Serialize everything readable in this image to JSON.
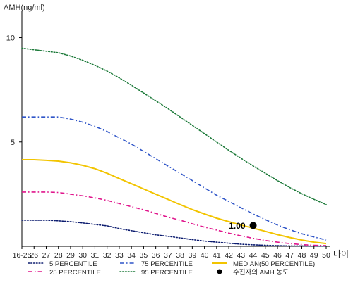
{
  "chart_data": {
    "type": "line",
    "ylabel": "AMH(ng/ml)",
    "xlabel": "나이",
    "x_ticks": [
      "16-25",
      "26",
      "27",
      "28",
      "29",
      "30",
      "31",
      "32",
      "33",
      "34",
      "35",
      "36",
      "37",
      "38",
      "39",
      "40",
      "41",
      "42",
      "43",
      "44",
      "45",
      "46",
      "47",
      "48",
      "49",
      "50"
    ],
    "y_ticks": [
      5,
      10
    ],
    "ylim": [
      0,
      11.3
    ],
    "grid": false,
    "legend_position": "bottom",
    "series": [
      {
        "name": "5 PERCENTILE",
        "color": "#0a1a6e",
        "style": "dotted",
        "points": [
          [
            0,
            1.25
          ],
          [
            1,
            1.25
          ],
          [
            2,
            1.25
          ],
          [
            3,
            1.22
          ],
          [
            4,
            1.18
          ],
          [
            5,
            1.12
          ],
          [
            6,
            1.05
          ],
          [
            7,
            0.98
          ],
          [
            8,
            0.85
          ],
          [
            9,
            0.75
          ],
          [
            10,
            0.65
          ],
          [
            11,
            0.55
          ],
          [
            12,
            0.48
          ],
          [
            13,
            0.4
          ],
          [
            14,
            0.32
          ],
          [
            15,
            0.25
          ],
          [
            16,
            0.2
          ],
          [
            17,
            0.15
          ],
          [
            18,
            0.1
          ],
          [
            19,
            0.07
          ],
          [
            20,
            0.05
          ],
          [
            21,
            0.03
          ],
          [
            22,
            0.02
          ],
          [
            23,
            0.02
          ],
          [
            24,
            0.01
          ],
          [
            25,
            0.01
          ]
        ]
      },
      {
        "name": "25 PERCENTILE",
        "color": "#e0168c",
        "style": "dash-dot",
        "points": [
          [
            0,
            2.6
          ],
          [
            1,
            2.6
          ],
          [
            2,
            2.6
          ],
          [
            3,
            2.58
          ],
          [
            4,
            2.5
          ],
          [
            5,
            2.42
          ],
          [
            6,
            2.32
          ],
          [
            7,
            2.2
          ],
          [
            8,
            2.05
          ],
          [
            9,
            1.9
          ],
          [
            10,
            1.75
          ],
          [
            11,
            1.58
          ],
          [
            12,
            1.4
          ],
          [
            13,
            1.25
          ],
          [
            14,
            1.08
          ],
          [
            15,
            0.92
          ],
          [
            16,
            0.78
          ],
          [
            17,
            0.63
          ],
          [
            18,
            0.5
          ],
          [
            19,
            0.38
          ],
          [
            20,
            0.28
          ],
          [
            21,
            0.2
          ],
          [
            22,
            0.13
          ],
          [
            23,
            0.08
          ],
          [
            24,
            0.05
          ],
          [
            25,
            0.03
          ]
        ]
      },
      {
        "name": "75 PERCENTILE",
        "color": "#2f55c8",
        "style": "dash-dot",
        "points": [
          [
            0,
            6.2
          ],
          [
            1,
            6.2
          ],
          [
            2,
            6.2
          ],
          [
            3,
            6.2
          ],
          [
            4,
            6.1
          ],
          [
            5,
            5.95
          ],
          [
            6,
            5.75
          ],
          [
            7,
            5.5
          ],
          [
            8,
            5.2
          ],
          [
            9,
            4.9
          ],
          [
            10,
            4.55
          ],
          [
            11,
            4.2
          ],
          [
            12,
            3.85
          ],
          [
            13,
            3.5
          ],
          [
            14,
            3.15
          ],
          [
            15,
            2.8
          ],
          [
            16,
            2.45
          ],
          [
            17,
            2.15
          ],
          [
            18,
            1.85
          ],
          [
            19,
            1.55
          ],
          [
            20,
            1.28
          ],
          [
            21,
            1.02
          ],
          [
            22,
            0.8
          ],
          [
            23,
            0.6
          ],
          [
            24,
            0.45
          ],
          [
            25,
            0.3
          ]
        ]
      },
      {
        "name": "95 PERCENTILE",
        "color": "#1d7a3a",
        "style": "dotted",
        "points": [
          [
            0,
            9.5
          ],
          [
            1,
            9.42
          ],
          [
            2,
            9.35
          ],
          [
            3,
            9.28
          ],
          [
            4,
            9.12
          ],
          [
            5,
            8.92
          ],
          [
            6,
            8.68
          ],
          [
            7,
            8.4
          ],
          [
            8,
            8.08
          ],
          [
            9,
            7.72
          ],
          [
            10,
            7.35
          ],
          [
            11,
            6.98
          ],
          [
            12,
            6.6
          ],
          [
            13,
            6.2
          ],
          [
            14,
            5.8
          ],
          [
            15,
            5.4
          ],
          [
            16,
            5.0
          ],
          [
            17,
            4.6
          ],
          [
            18,
            4.22
          ],
          [
            19,
            3.85
          ],
          [
            20,
            3.5
          ],
          [
            21,
            3.15
          ],
          [
            22,
            2.82
          ],
          [
            23,
            2.52
          ],
          [
            24,
            2.25
          ],
          [
            25,
            2.0
          ]
        ]
      },
      {
        "name": "MEDIAN(50 PERCENTILE)",
        "color": "#f2c400",
        "style": "solid",
        "points": [
          [
            0,
            4.15
          ],
          [
            1,
            4.15
          ],
          [
            2,
            4.12
          ],
          [
            3,
            4.08
          ],
          [
            4,
            4.0
          ],
          [
            5,
            3.88
          ],
          [
            6,
            3.72
          ],
          [
            7,
            3.5
          ],
          [
            8,
            3.25
          ],
          [
            9,
            3.0
          ],
          [
            10,
            2.75
          ],
          [
            11,
            2.5
          ],
          [
            12,
            2.25
          ],
          [
            13,
            2.0
          ],
          [
            14,
            1.76
          ],
          [
            15,
            1.55
          ],
          [
            16,
            1.35
          ],
          [
            17,
            1.18
          ],
          [
            18,
            1.02
          ],
          [
            19,
            0.87
          ],
          [
            20,
            0.72
          ],
          [
            21,
            0.56
          ],
          [
            22,
            0.42
          ],
          [
            23,
            0.3
          ],
          [
            24,
            0.2
          ],
          [
            25,
            0.13
          ]
        ]
      }
    ],
    "marker": {
      "name": "수진자의 AMH 농도",
      "x": 19,
      "y": 1.0,
      "label": "1.00",
      "color": "#000000"
    }
  }
}
